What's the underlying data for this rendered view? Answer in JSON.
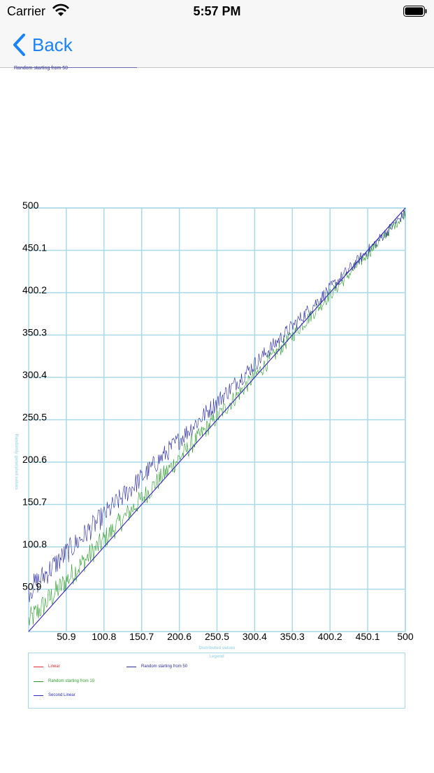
{
  "status_bar": {
    "carrier": "Carrier",
    "time": "5:57 PM"
  },
  "nav": {
    "back_label": "Back"
  },
  "top_legend": {
    "label": "Random starting from 50"
  },
  "colors": {
    "grid": "#a9d9e8",
    "linear": "#e0282e",
    "random10": "#2a9a2a",
    "random50": "#2a2a9a",
    "second_linear": "#2a2ad0",
    "back_blue": "#1a82fb"
  },
  "chart_data": {
    "type": "line",
    "xlabel": "Distributed values",
    "ylabel": "Randomly generated values",
    "xlim": [
      1,
      500
    ],
    "ylim": [
      1,
      500
    ],
    "x_ticks": [
      "50.9",
      "100.8",
      "150.7",
      "200.6",
      "250.5",
      "300.4",
      "350.3",
      "400.2",
      "450.1",
      "500"
    ],
    "y_ticks": [
      "500",
      "450.1",
      "400.2",
      "350.3",
      "300.4",
      "250.5",
      "200.6",
      "150.7",
      "100.8",
      "50.9"
    ],
    "grid": true,
    "legend_title": "Legend",
    "legend_position": "bottom",
    "series": [
      {
        "name": "Linear",
        "color_key": "linear",
        "kind": "linear",
        "points": [
          [
            1,
            1
          ],
          [
            500,
            500
          ]
        ]
      },
      {
        "name": "Random starting from 10",
        "color_key": "random10",
        "kind": "random",
        "offset_min": 10,
        "spread": 30
      },
      {
        "name": "Random starting from 50",
        "color_key": "random50",
        "kind": "random",
        "offset_min": 50,
        "spread": 30
      },
      {
        "name": "Second Linear",
        "color_key": "second_linear",
        "kind": "linear",
        "points": [
          [
            1,
            1
          ],
          [
            500,
            500
          ]
        ]
      }
    ]
  }
}
